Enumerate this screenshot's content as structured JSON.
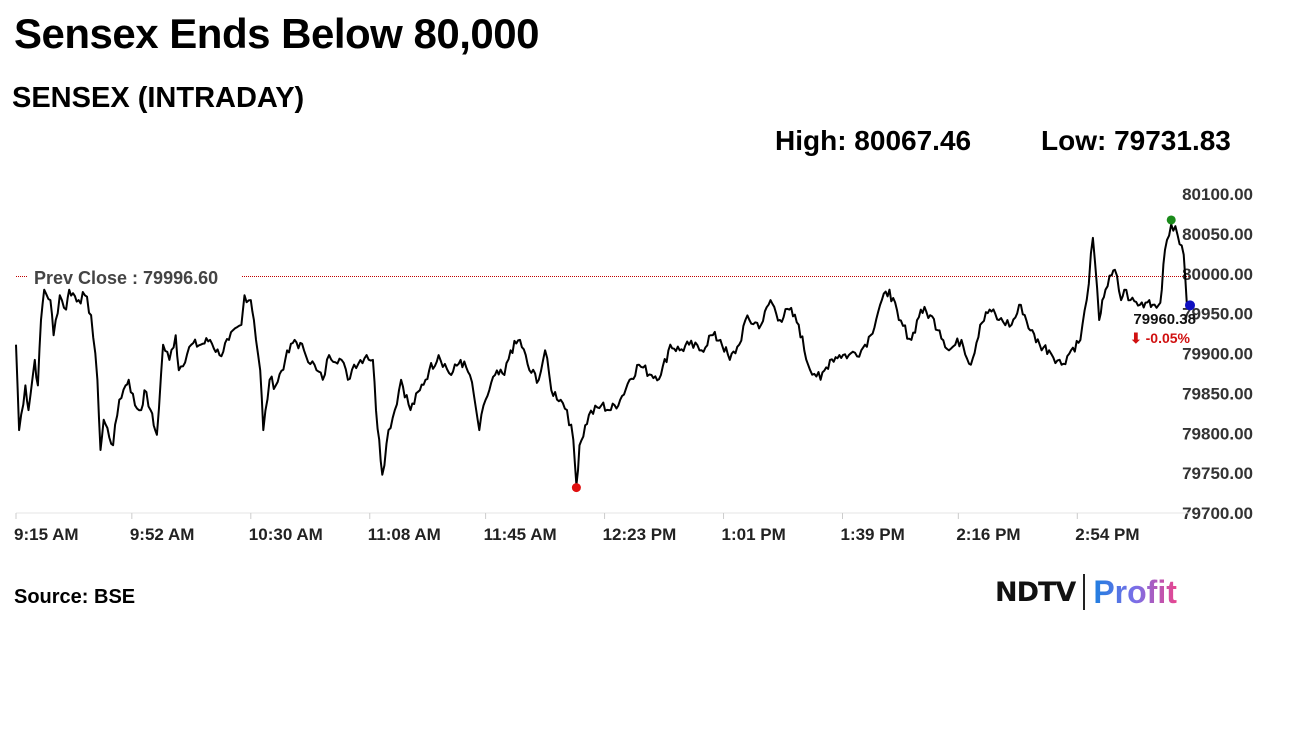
{
  "title": "Sensex Ends Below 80,000",
  "subtitle": "SENSEX (INTRADAY)",
  "high_label": "High: 80067.46",
  "low_label": "Low: 79731.83",
  "source": "Source: BSE",
  "logo": {
    "left": "NDTV",
    "right": "Profit"
  },
  "colors": {
    "line": "#000000",
    "prev_close": "#c00000",
    "high_dot": "#1a8a1a",
    "low_dot": "#e01010",
    "last_dot": "#1010c0",
    "change": "#d01010"
  },
  "chart_data": {
    "type": "line",
    "title": "SENSEX (INTRADAY)",
    "xlabel": "",
    "ylabel": "",
    "ylim": [
      79700,
      80100
    ],
    "xlim_minutes_from_open": [
      0,
      375
    ],
    "y_ticks": [
      "80100.00",
      "80050.00",
      "80000.00",
      "79950.00",
      "79900.00",
      "79850.00",
      "79800.00",
      "79750.00",
      "79700.00"
    ],
    "x_ticks": [
      {
        "label": "9:15 AM",
        "minute": 0
      },
      {
        "label": "9:52 AM",
        "minute": 37
      },
      {
        "label": "10:30 AM",
        "minute": 75
      },
      {
        "label": "11:08 AM",
        "minute": 113
      },
      {
        "label": "11:45 AM",
        "minute": 150
      },
      {
        "label": "12:23 PM",
        "minute": 188
      },
      {
        "label": "1:01 PM",
        "minute": 226
      },
      {
        "label": "1:39 PM",
        "minute": 264
      },
      {
        "label": "2:16 PM",
        "minute": 301
      },
      {
        "label": "2:54 PM",
        "minute": 339
      }
    ],
    "prev_close": {
      "label": "Prev Close : 79996.60",
      "value": 79996.6
    },
    "high": {
      "value": 80067.46,
      "minute": 369
    },
    "low": {
      "value": 79731.83,
      "minute": 179
    },
    "last": {
      "value": 79960.38,
      "minute": 375,
      "label": "79960.38",
      "change": "⬇ -0.05%"
    },
    "minutes": [
      0,
      1,
      3,
      4,
      6,
      7,
      8,
      9,
      11,
      12,
      14,
      16,
      17,
      20,
      22,
      24,
      26,
      27,
      28,
      31,
      33,
      35,
      36,
      38,
      40,
      41,
      43,
      44,
      45,
      47,
      49,
      51,
      52,
      56,
      59,
      62,
      65,
      68,
      72,
      73,
      75,
      76,
      78,
      79,
      81,
      83,
      86,
      89,
      92,
      96,
      98,
      100,
      104,
      106,
      108,
      112,
      114,
      115,
      116,
      117,
      119,
      121,
      123,
      126,
      129,
      132,
      135,
      139,
      142,
      145,
      147,
      148,
      150,
      153,
      156,
      158,
      161,
      164,
      167,
      169,
      171,
      174,
      176,
      178,
      179,
      180,
      183,
      187,
      190,
      193,
      196,
      199,
      203,
      206,
      209,
      212,
      215,
      219,
      222,
      225,
      228,
      231,
      233,
      238,
      241,
      244,
      247,
      250,
      253,
      257,
      260,
      263,
      266,
      270,
      273,
      276,
      279,
      282,
      286,
      289,
      292,
      295,
      298,
      302,
      305,
      308,
      311,
      314,
      318,
      321,
      324,
      327,
      330,
      334,
      337,
      340,
      342,
      344,
      346,
      347,
      348,
      350,
      351,
      353,
      354,
      356,
      359,
      362,
      363,
      365,
      366,
      367,
      369,
      371,
      373,
      374,
      375
    ],
    "values": [
      79911,
      79804,
      79860,
      79829,
      79892,
      79860,
      79942,
      79980,
      79967,
      79923,
      79973,
      79955,
      79980,
      79967,
      79973,
      79948,
      79867,
      79779,
      79817,
      79785,
      79842,
      79860,
      79867,
      79835,
      79829,
      79854,
      79829,
      79810,
      79798,
      79911,
      79892,
      79923,
      79879,
      79911,
      79911,
      79917,
      79898,
      79917,
      79936,
      79973,
      79967,
      79942,
      79879,
      79804,
      79867,
      79860,
      79892,
      79917,
      79904,
      79879,
      79867,
      79898,
      79892,
      79867,
      79886,
      79898,
      79892,
      79829,
      79792,
      79748,
      79804,
      79829,
      79867,
      79829,
      79854,
      79879,
      79898,
      79873,
      79892,
      79873,
      79829,
      79804,
      79842,
      79873,
      79873,
      79904,
      79917,
      79879,
      79867,
      79904,
      79854,
      79842,
      79829,
      79792,
      79735,
      79785,
      79823,
      79835,
      79829,
      79842,
      79867,
      79886,
      79873,
      79873,
      79911,
      79904,
      79911,
      79904,
      79923,
      79917,
      79892,
      79911,
      79942,
      79936,
      79967,
      79942,
      79955,
      79936,
      79886,
      79867,
      79892,
      79898,
      79898,
      79904,
      79923,
      79961,
      79980,
      79942,
      79917,
      79955,
      79948,
      79929,
      79904,
      79917,
      79886,
      79936,
      79955,
      79942,
      79936,
      79961,
      79929,
      79911,
      79904,
      79886,
      79904,
      79917,
      79967,
      80045,
      79942,
      79967,
      79980,
      79998,
      80005,
      79967,
      79980,
      79967,
      79961,
      79967,
      79961,
      79961,
      79980,
      80030,
      80062,
      80049,
      80024,
      79961,
      79960
    ]
  }
}
